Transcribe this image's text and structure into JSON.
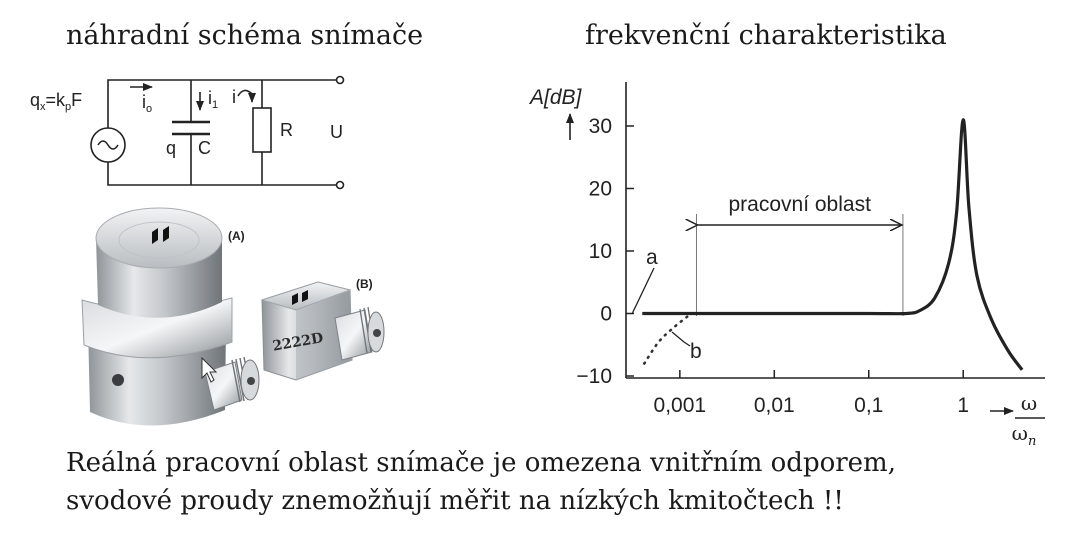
{
  "headings": {
    "circuit": "náhradní schéma snímače",
    "chart": "frekvenční charakteristika"
  },
  "circuit": {
    "source_label_q": "q",
    "source_label_sub": "x",
    "source_label_eq": "=k",
    "source_label_p": "p",
    "source_label_F": "F",
    "current_i0": "i",
    "current_i0_sub": "o",
    "current_i1": "i",
    "current_i1_sub": "1",
    "current_i": "i",
    "cap_q": "q",
    "cap_C": "C",
    "resistor_R": "R",
    "output_U": "U"
  },
  "photo": {
    "label_A": "(A)",
    "label_B": "(B)",
    "model_B": "2222D"
  },
  "chart_data": {
    "type": "line",
    "ylabel": "A[dB]",
    "x_ticks": [
      "0,001",
      "0,01",
      "0,1",
      "1"
    ],
    "x_scale": "log",
    "xlabel_num": "ω",
    "xlabel_den": "ω",
    "xlabel_den_sub": "n",
    "y_ticks": [
      "30",
      "20",
      "10",
      "0",
      "−10"
    ],
    "ylim": [
      -10,
      30
    ],
    "region_label": "pracovní oblast",
    "region_range": [
      0.0015,
      0.23
    ],
    "annotation_a": "a",
    "annotation_b": "b",
    "series": [
      {
        "x": [
          0.0004,
          0.0015,
          0.01,
          0.1,
          0.25,
          0.35,
          0.5,
          0.7,
          0.85,
          1.0,
          1.15,
          1.4,
          2.0,
          3.0,
          4.2
        ],
        "values": [
          0,
          0,
          0,
          0,
          0,
          0.5,
          2.5,
          8,
          16,
          31,
          17,
          6,
          -1,
          -6,
          -9
        ]
      },
      {
        "x": [
          0.00042,
          0.0006,
          0.0009,
          0.0012
        ],
        "values": [
          -8,
          -4.5,
          -2,
          -0.5
        ]
      }
    ]
  },
  "caption": {
    "line1": "Reálná pracovní oblast snímače je omezena vnitřním odporem,",
    "line2": "svodové proudy znemožňují měřit na nízkých kmitočtech !!"
  }
}
